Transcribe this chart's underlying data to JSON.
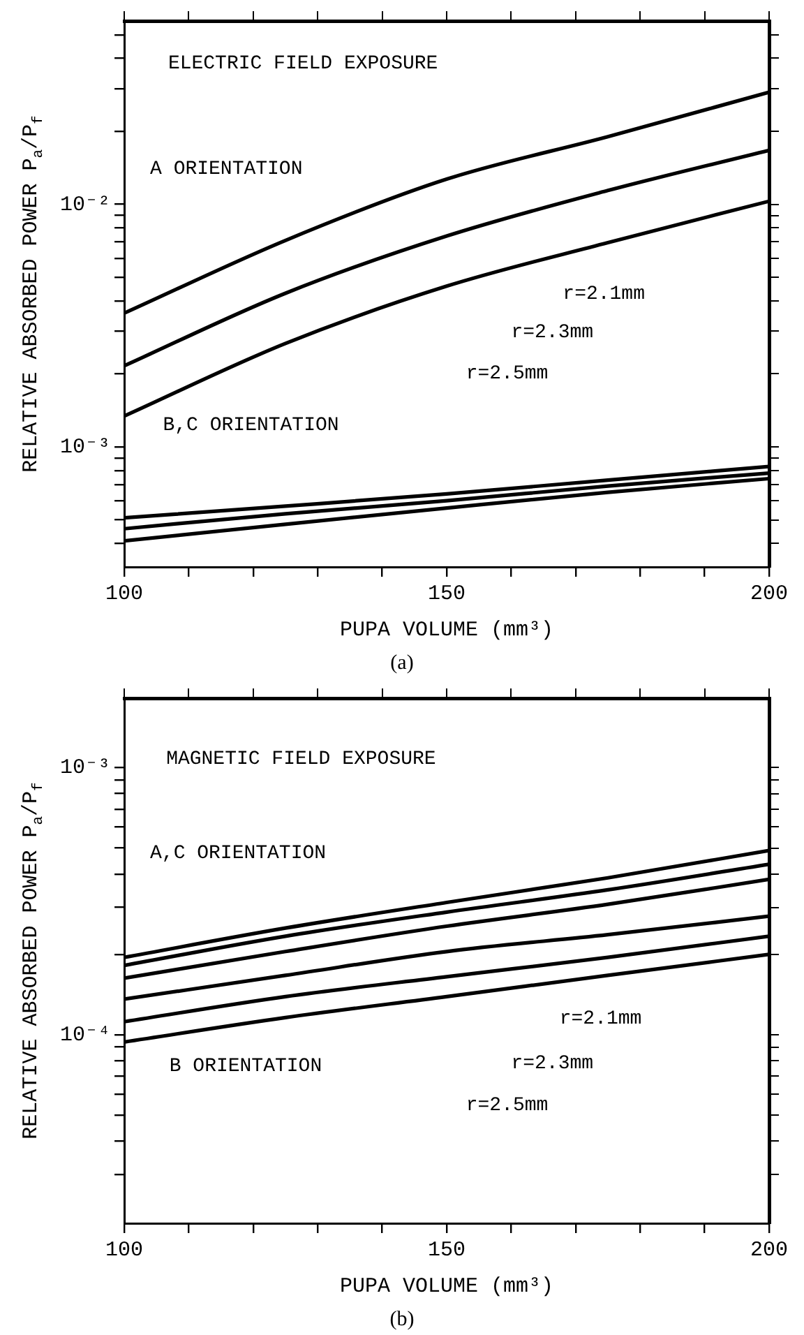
{
  "chart_data": [
    {
      "type": "line",
      "xlabel": "PUPA VOLUME (mm³)",
      "ylabel": "RELATIVE ABSORBED POWER P$_{a}$/P$_{f}$",
      "log": true,
      "grid": false,
      "legend": false,
      "marker": "none",
      "line_style": "solid",
      "x": [
        100,
        125,
        150,
        175,
        200
      ],
      "xlim": [
        100,
        200
      ],
      "xticks": [
        100,
        {
          "value": 110,
          "label": null
        },
        {
          "value": 120,
          "label": null
        },
        {
          "value": 130,
          "label": null
        },
        {
          "value": 140,
          "label": null
        },
        150,
        {
          "value": 160,
          "label": null
        },
        {
          "value": 170,
          "label": null
        },
        {
          "value": 180,
          "label": null
        },
        {
          "value": 190,
          "label": null
        },
        200
      ],
      "ylim": [
        0.00032,
        0.057
      ],
      "yticks": [
        {
          "value": 0.0004,
          "label": null
        },
        {
          "value": 0.0005,
          "label": null
        },
        {
          "value": 0.0006,
          "label": null
        },
        {
          "value": 0.0007,
          "label": null
        },
        {
          "value": 0.0008,
          "label": null
        },
        {
          "value": 0.0009,
          "label": null
        },
        {
          "value": 0.001,
          "label": "10⁻³"
        },
        {
          "value": 0.002,
          "label": null
        },
        {
          "value": 0.003,
          "label": null
        },
        {
          "value": 0.004,
          "label": null
        },
        {
          "value": 0.005,
          "label": null
        },
        {
          "value": 0.006,
          "label": null
        },
        {
          "value": 0.007,
          "label": null
        },
        {
          "value": 0.008,
          "label": null
        },
        {
          "value": 0.009,
          "label": null
        },
        {
          "value": 0.01,
          "label": "10⁻²"
        },
        {
          "value": 0.02,
          "label": null
        },
        {
          "value": 0.03,
          "label": null
        },
        {
          "value": 0.04,
          "label": null
        },
        {
          "value": 0.05,
          "label": null
        }
      ],
      "series": [
        {
          "color": "#000000",
          "values": [
            0.00356,
            0.0071,
            0.0127,
            0.019,
            0.029
          ]
        },
        {
          "color": "#000000",
          "values": [
            0.00216,
            0.0043,
            0.0074,
            0.0114,
            0.0167
          ]
        },
        {
          "color": "#000000",
          "values": [
            0.00134,
            0.00267,
            0.0046,
            0.00695,
            0.0103
          ]
        },
        {
          "color": "#000000",
          "values": [
            0.00051,
            0.00057,
            0.00064,
            0.00073,
            0.00083
          ]
        },
        {
          "color": "#000000",
          "values": [
            0.00046,
            0.00053,
            0.0006,
            0.00069,
            0.00078
          ]
        },
        {
          "color": "#000000",
          "values": [
            0.00041,
            0.00048,
            0.00056,
            0.00065,
            0.00074
          ]
        }
      ],
      "annotations": [
        "ELECTRIC FIELD EXPOSURE",
        "A ORIENTATION",
        "B,C ORIENTATION",
        "r=2.1mm",
        "r=2.3mm",
        "r=2.5mm",
        "(a)"
      ]
    },
    {
      "type": "line",
      "xlabel": "PUPA VOLUME (mm³)",
      "ylabel": "RELATIVE ABSORBED POWER P$_{a}$/P$_{f}$",
      "log": true,
      "grid": false,
      "legend": false,
      "marker": "none",
      "line_style": "solid",
      "x": [
        100,
        125,
        150,
        175,
        200
      ],
      "xlim": [
        100,
        200
      ],
      "xticks": [
        100,
        {
          "value": 110,
          "label": null
        },
        {
          "value": 120,
          "label": null
        },
        {
          "value": 130,
          "label": null
        },
        {
          "value": 140,
          "label": null
        },
        150,
        {
          "value": 160,
          "label": null
        },
        {
          "value": 170,
          "label": null
        },
        {
          "value": 180,
          "label": null
        },
        {
          "value": 190,
          "label": null
        },
        200
      ],
      "ylim": [
        1.97e-05,
        0.00182
      ],
      "yticks": [
        {
          "value": 3e-05,
          "label": null
        },
        {
          "value": 4e-05,
          "label": null
        },
        {
          "value": 5e-05,
          "label": null
        },
        {
          "value": 6e-05,
          "label": null
        },
        {
          "value": 7e-05,
          "label": null
        },
        {
          "value": 8e-05,
          "label": null
        },
        {
          "value": 9e-05,
          "label": null
        },
        {
          "value": 0.0001,
          "label": "10⁻⁴"
        },
        {
          "value": 0.0002,
          "label": null
        },
        {
          "value": 0.0003,
          "label": null
        },
        {
          "value": 0.0004,
          "label": null
        },
        {
          "value": 0.0005,
          "label": null
        },
        {
          "value": 0.0006,
          "label": null
        },
        {
          "value": 0.0007,
          "label": null
        },
        {
          "value": 0.0008,
          "label": null
        },
        {
          "value": 0.0009,
          "label": null
        },
        {
          "value": 0.001,
          "label": "10⁻³"
        }
      ],
      "series": [
        {
          "color": "#000000",
          "values": [
            0.000195,
            0.000251,
            0.000313,
            0.000387,
            0.00049
          ]
        },
        {
          "color": "#000000",
          "values": [
            0.000182,
            0.000234,
            0.000288,
            0.000349,
            0.000435
          ]
        },
        {
          "color": "#000000",
          "values": [
            0.000163,
            0.000205,
            0.000255,
            0.000308,
            0.000382
          ]
        },
        {
          "color": "#000000",
          "values": [
            0.000136,
            0.000167,
            0.000205,
            0.000237,
            0.000278
          ]
        },
        {
          "color": "#000000",
          "values": [
            0.000112,
            0.000139,
            0.000165,
            0.000195,
            0.000234
          ]
        },
        {
          "color": "#000000",
          "values": [
            9.4e-05,
            0.000116,
            0.000139,
            0.000167,
            0.0002
          ]
        }
      ],
      "annotations": [
        "MAGNETIC FIELD EXPOSURE",
        "A,C ORIENTATION",
        "B ORIENTATION",
        "r=2.1mm",
        "r=2.3mm",
        "r=2.5mm",
        "(b)"
      ]
    }
  ]
}
